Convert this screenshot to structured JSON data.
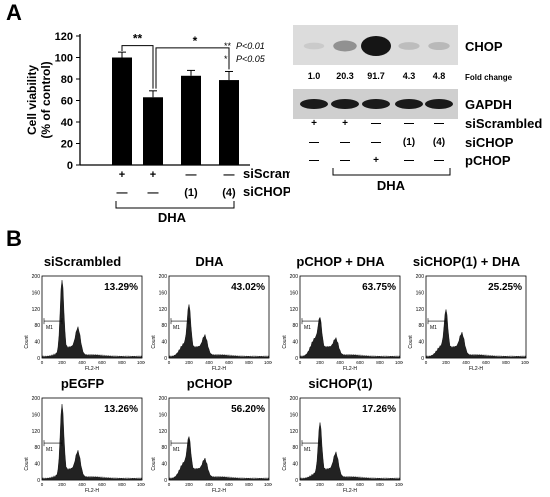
{
  "panel_a_label": "A",
  "panel_b_label": "B",
  "chart_data": [
    {
      "type": "bar",
      "ylabel": "Cell viability\n(% of control)",
      "ylim": [
        0,
        120
      ],
      "yticks": [
        "0",
        "20",
        "40",
        "60",
        "80",
        "100",
        "120"
      ],
      "values": [
        100,
        63,
        83,
        79
      ],
      "errors": [
        5,
        6,
        5,
        8
      ],
      "row_labels": [
        "siScrambled",
        "siCHOP"
      ],
      "rows": [
        [
          "+",
          "+",
          "—",
          "—"
        ],
        [
          "—",
          "—",
          "(1)",
          "(4)"
        ]
      ],
      "group_label": "DHA",
      "significance": [
        "**",
        "*"
      ],
      "legend_lines": [
        {
          "stars": "**",
          "text": "P<0.01"
        },
        {
          "stars": "*",
          "text": "P<0.05"
        }
      ]
    },
    {
      "type": "table",
      "blots": [
        "CHOP",
        "GAPDH"
      ],
      "fold_change_label": "Fold change",
      "fold_change": [
        "1.0",
        "20.3",
        "91.7",
        "4.3",
        "4.8"
      ],
      "chop_intensity": [
        0.05,
        0.35,
        1.0,
        0.12,
        0.14
      ],
      "row_labels": [
        "siScrambled",
        "siCHOP",
        "pCHOP"
      ],
      "rows": [
        [
          "+",
          "+",
          "—",
          "—",
          "—"
        ],
        [
          "—",
          "—",
          "—",
          "(1)",
          "(4)"
        ],
        [
          "—",
          "—",
          "+",
          "—",
          "—"
        ]
      ],
      "group_label": "DHA"
    },
    {
      "type": "area",
      "histograms": [
        {
          "title": "siScrambled",
          "percent": "13.29%"
        },
        {
          "title": "DHA",
          "percent": "43.02%"
        },
        {
          "title": "pCHOP + DHA",
          "percent": "63.75%"
        },
        {
          "title": "siCHOP(1) + DHA",
          "percent": "25.25%"
        },
        {
          "title": "pEGFP",
          "percent": "13.26%"
        },
        {
          "title": "pCHOP",
          "percent": "56.20%"
        },
        {
          "title": "siCHOP(1)",
          "percent": "17.26%"
        }
      ],
      "ylabel": "Count",
      "xlabel": "FL2-H",
      "marker_label": "M1",
      "yticks": [
        "0",
        "40",
        "80",
        "120",
        "160",
        "200"
      ],
      "xticks": [
        "0",
        "200",
        "400",
        "600",
        "800",
        "1000"
      ]
    }
  ]
}
